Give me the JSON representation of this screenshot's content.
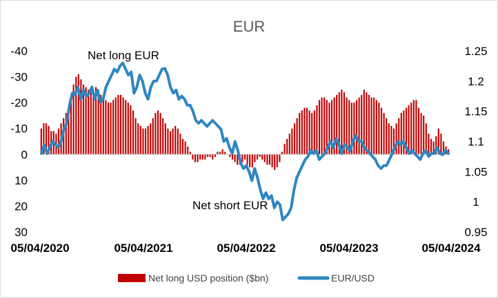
{
  "chart_data": {
    "type": "bar+line",
    "title": "EUR",
    "x_ticks": [
      "05/04/2020",
      "05/04/2021",
      "05/04/2022",
      "05/04/2023",
      "05/04/2024"
    ],
    "left_axis": {
      "range": [
        30,
        -40
      ],
      "ticks": [
        -40,
        -30,
        -20,
        -10,
        0,
        10,
        20,
        30
      ],
      "tick_labels": [
        "-40",
        "-30",
        "-20",
        "-10",
        "0",
        "10",
        "20",
        "30"
      ],
      "reversed": true
    },
    "right_axis": {
      "range": [
        0.95,
        1.25
      ],
      "ticks": [
        0.95,
        1,
        1.05,
        1.1,
        1.15,
        1.2,
        1.25
      ],
      "tick_labels": [
        "0.95",
        "1",
        "1.05",
        "1.1",
        "1.15",
        "1.2",
        "1.25"
      ]
    },
    "annotations": [
      "Net long EUR",
      "Net short EUR"
    ],
    "series": [
      {
        "name": "Net long USD position ($bn)",
        "type": "bar",
        "axis": "left",
        "color": "#c00000",
        "x_start": "2020-03-31",
        "step_days": 7,
        "values": [
          -10,
          -12,
          -12,
          -11,
          -9,
          -9,
          -8,
          -10,
          -12,
          -14,
          -16,
          -18,
          -22,
          -27,
          -30,
          -31,
          -29,
          -27,
          -26,
          -25,
          -24,
          -25,
          -26,
          -25,
          -23,
          -22,
          -21,
          -20,
          -20,
          -21,
          -22,
          -23,
          -23,
          -22,
          -21,
          -20,
          -19,
          -17,
          -14,
          -12,
          -11,
          -10,
          -10,
          -11,
          -12,
          -14,
          -16,
          -17,
          -16,
          -14,
          -12,
          -10,
          -9,
          -10,
          -11,
          -10,
          -8,
          -6,
          -5,
          -3,
          -1,
          2,
          3,
          3,
          2,
          2,
          2,
          1,
          1,
          2,
          1,
          -1,
          -1,
          -2,
          -1,
          0,
          1,
          2,
          3,
          4,
          4,
          3,
          2,
          4,
          5,
          5,
          3,
          2,
          1,
          2,
          3,
          4,
          4,
          5,
          6,
          5,
          3,
          -1,
          -4,
          -6,
          -8,
          -10,
          -12,
          -14,
          -16,
          -17,
          -18,
          -18,
          -17,
          -16,
          -17,
          -19,
          -21,
          -22,
          -22,
          -21,
          -20,
          -21,
          -22,
          -23,
          -24,
          -25,
          -24,
          -22,
          -21,
          -20,
          -20,
          -21,
          -22,
          -23,
          -25,
          -24,
          -23,
          -22,
          -22,
          -21,
          -20,
          -18,
          -16,
          -14,
          -12,
          -11,
          -10,
          -12,
          -14,
          -16,
          -17,
          -18,
          -19,
          -20,
          -21,
          -21,
          -18,
          -16,
          -15,
          -12,
          -8,
          -6,
          -5,
          -7,
          -10,
          -8,
          -5,
          -3,
          -2
        ]
      },
      {
        "name": "EUR/USD",
        "type": "line",
        "axis": "right",
        "color": "#2e86c1",
        "x_start": "2020-03-31",
        "step_days": 7,
        "values": [
          1.08,
          1.094,
          1.08,
          1.09,
          1.1,
          1.095,
          1.09,
          1.1,
          1.12,
          1.13,
          1.16,
          1.18,
          1.178,
          1.19,
          1.17,
          1.185,
          1.175,
          1.18,
          1.19,
          1.17,
          1.185,
          1.165,
          1.17,
          1.19,
          1.2,
          1.21,
          1.22,
          1.215,
          1.225,
          1.23,
          1.22,
          1.21,
          1.215,
          1.18,
          1.19,
          1.21,
          1.2,
          1.18,
          1.17,
          1.19,
          1.2,
          1.2,
          1.21,
          1.22,
          1.221,
          1.21,
          1.19,
          1.18,
          1.185,
          1.17,
          1.175,
          1.17,
          1.16,
          1.16,
          1.15,
          1.135,
          1.13,
          1.135,
          1.13,
          1.125,
          1.13,
          1.135,
          1.13,
          1.125,
          1.12,
          1.1,
          1.105,
          1.09,
          1.08,
          1.1,
          1.085,
          1.065,
          1.055,
          1.06,
          1.05,
          1.035,
          1.055,
          1.04,
          1.02,
          1.005,
          1.015,
          1.005,
          1.01,
          0.99,
          1.0,
          0.995,
          0.97,
          0.975,
          0.98,
          0.99,
          1.02,
          1.04,
          1.05,
          1.06,
          1.07,
          1.075,
          1.085,
          1.08,
          1.085,
          1.07,
          1.075,
          1.08,
          1.09,
          1.1,
          1.09,
          1.105,
          1.095,
          1.08,
          1.095,
          1.09,
          1.085,
          1.1,
          1.11,
          1.1,
          1.1,
          1.09,
          1.085,
          1.08,
          1.075,
          1.07,
          1.06,
          1.055,
          1.06,
          1.06,
          1.07,
          1.08,
          1.09,
          1.1,
          1.095,
          1.1,
          1.09,
          1.08,
          1.085,
          1.08,
          1.075,
          1.07,
          1.08,
          1.085,
          1.075,
          1.08,
          1.08,
          1.09,
          1.08,
          1.078,
          1.085,
          1.08
        ]
      }
    ],
    "legend": {
      "placement": "bottom"
    },
    "grid": false
  }
}
